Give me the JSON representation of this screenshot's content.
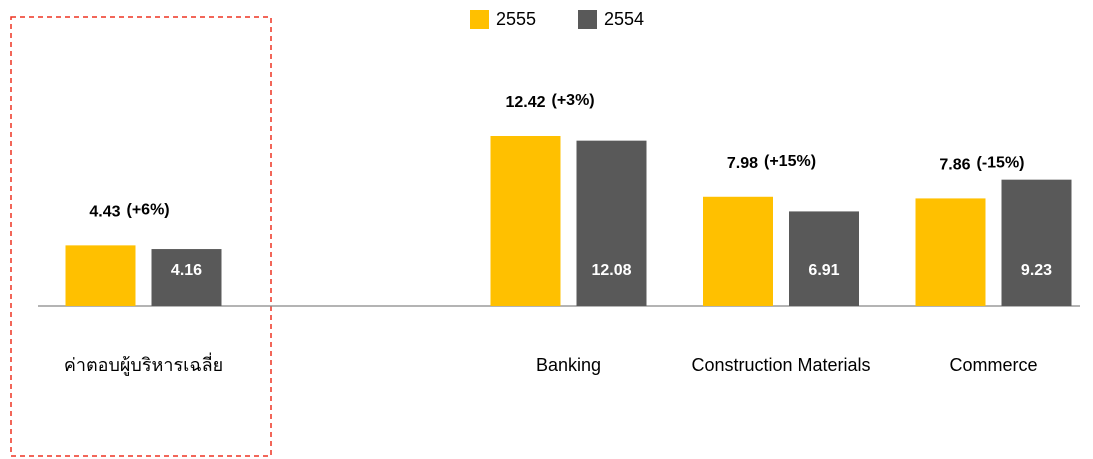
{
  "chart_data": {
    "type": "bar",
    "categories": [
      "ค่าตอบผู้บริหารเฉลี่ย",
      null,
      "Banking",
      "Construction Materials",
      "Commerce"
    ],
    "series": [
      {
        "name": "2555",
        "color": "#ffc000",
        "values": [
          4.43,
          null,
          12.42,
          7.98,
          7.86
        ]
      },
      {
        "name": "2554",
        "color": "#595959",
        "values": [
          4.16,
          null,
          12.08,
          6.91,
          9.23
        ]
      }
    ],
    "changes": [
      "(+6%)",
      null,
      "(+3%)",
      "(+15%)",
      "(-15%)"
    ],
    "ylim": [
      0,
      16
    ]
  }
}
